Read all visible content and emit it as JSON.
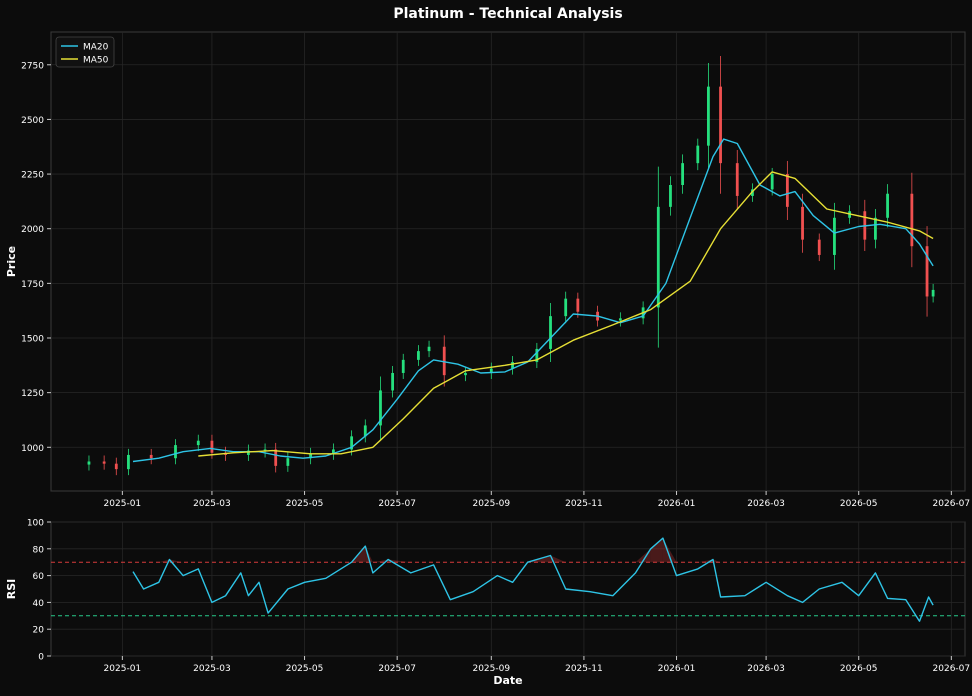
{
  "title": "Platinum - Technical Analysis",
  "colors": {
    "background": "#0c0c0c",
    "axes_bg": "#0c0c0c",
    "spine": "#3a3a3a",
    "grid": "#262626",
    "text": "#ffffff",
    "up": "#25e07e",
    "down": "#f05050",
    "ma20": "#2ec4e6",
    "ma50": "#e6df35",
    "rsi": "#2ec4e6",
    "overbought": "#d63b3b",
    "oversold": "#26c98a"
  },
  "chart_data": [
    {
      "type": "line",
      "panel": "price",
      "title": "Platinum - Technical Analysis",
      "xlabel": "",
      "ylabel": "Price",
      "x_ticks": [
        "2025-01",
        "2025-03",
        "2025-05",
        "2025-07",
        "2025-09",
        "2025-11",
        "2026-01",
        "2026-03",
        "2026-05",
        "2026-07"
      ],
      "xlim": [
        "2024-11-15",
        "2026-07-10"
      ],
      "ylim": [
        800,
        2900
      ],
      "y_ticks": [
        1000,
        1250,
        1500,
        1750,
        2000,
        2250,
        2500,
        2750
      ],
      "grid": true,
      "legend": {
        "position": "top-left",
        "entries": [
          "MA20",
          "MA50"
        ]
      },
      "candles": {
        "style": "candlestick",
        "points": [
          [
            "2024-12-10",
            935
          ],
          [
            "2024-12-20",
            925
          ],
          [
            "2024-12-28",
            900
          ],
          [
            "2025-01-05",
            965
          ],
          [
            "2025-01-20",
            950
          ],
          [
            "2025-02-05",
            1010
          ],
          [
            "2025-02-20",
            1030
          ],
          [
            "2025-03-01",
            975
          ],
          [
            "2025-03-10",
            965
          ],
          [
            "2025-03-25",
            985
          ],
          [
            "2025-04-05",
            990
          ],
          [
            "2025-04-12",
            915
          ],
          [
            "2025-04-20",
            950
          ],
          [
            "2025-05-05",
            970
          ],
          [
            "2025-05-20",
            990
          ],
          [
            "2025-06-01",
            1050
          ],
          [
            "2025-06-10",
            1100
          ],
          [
            "2025-06-20",
            1260
          ],
          [
            "2025-06-28",
            1340
          ],
          [
            "2025-07-05",
            1400
          ],
          [
            "2025-07-15",
            1440
          ],
          [
            "2025-07-22",
            1460
          ],
          [
            "2025-08-01",
            1330
          ],
          [
            "2025-08-15",
            1340
          ],
          [
            "2025-09-01",
            1360
          ],
          [
            "2025-09-15",
            1390
          ],
          [
            "2025-10-01",
            1450
          ],
          [
            "2025-10-10",
            1600
          ],
          [
            "2025-10-20",
            1680
          ],
          [
            "2025-10-28",
            1620
          ],
          [
            "2025-11-10",
            1580
          ],
          [
            "2025-11-25",
            1590
          ],
          [
            "2025-12-10",
            1640
          ],
          [
            "2025-12-20",
            2100
          ],
          [
            "2025-12-28",
            2200
          ],
          [
            "2026-01-05",
            2300
          ],
          [
            "2026-01-15",
            2380
          ],
          [
            "2026-01-22",
            2650
          ],
          [
            "2026-01-30",
            2300
          ],
          [
            "2026-02-10",
            2150
          ],
          [
            "2026-02-20",
            2180
          ],
          [
            "2026-03-05",
            2250
          ],
          [
            "2026-03-15",
            2100
          ],
          [
            "2026-03-25",
            1950
          ],
          [
            "2026-04-05",
            1880
          ],
          [
            "2026-04-15",
            2050
          ],
          [
            "2026-04-25",
            2080
          ],
          [
            "2026-05-05",
            1950
          ],
          [
            "2026-05-12",
            2050
          ],
          [
            "2026-05-20",
            2160
          ],
          [
            "2026-06-05",
            1920
          ],
          [
            "2026-06-15",
            1690
          ],
          [
            "2026-06-19",
            1720
          ]
        ]
      },
      "series": [
        {
          "name": "MA20",
          "points": [
            [
              "2025-01-08",
              935
            ],
            [
              "2025-01-25",
              950
            ],
            [
              "2025-02-10",
              980
            ],
            [
              "2025-02-28",
              995
            ],
            [
              "2025-03-15",
              980
            ],
            [
              "2025-04-01",
              980
            ],
            [
              "2025-04-15",
              960
            ],
            [
              "2025-04-30",
              950
            ],
            [
              "2025-05-15",
              960
            ],
            [
              "2025-06-01",
              1000
            ],
            [
              "2025-06-15",
              1080
            ],
            [
              "2025-07-01",
              1220
            ],
            [
              "2025-07-15",
              1350
            ],
            [
              "2025-07-25",
              1400
            ],
            [
              "2025-08-10",
              1380
            ],
            [
              "2025-08-25",
              1340
            ],
            [
              "2025-09-10",
              1345
            ],
            [
              "2025-09-25",
              1390
            ],
            [
              "2025-10-10",
              1500
            ],
            [
              "2025-10-25",
              1610
            ],
            [
              "2025-11-10",
              1600
            ],
            [
              "2025-11-25",
              1570
            ],
            [
              "2025-12-10",
              1600
            ],
            [
              "2025-12-25",
              1750
            ],
            [
              "2026-01-10",
              2050
            ],
            [
              "2026-01-25",
              2330
            ],
            [
              "2026-02-01",
              2410
            ],
            [
              "2026-02-10",
              2390
            ],
            [
              "2026-02-25",
              2200
            ],
            [
              "2026-03-10",
              2150
            ],
            [
              "2026-03-20",
              2170
            ],
            [
              "2026-04-01",
              2060
            ],
            [
              "2026-04-15",
              1980
            ],
            [
              "2026-05-01",
              2010
            ],
            [
              "2026-05-15",
              2020
            ],
            [
              "2026-06-01",
              2000
            ],
            [
              "2026-06-10",
              1930
            ],
            [
              "2026-06-19",
              1830
            ]
          ]
        },
        {
          "name": "MA50",
          "points": [
            [
              "2025-02-20",
              960
            ],
            [
              "2025-03-15",
              975
            ],
            [
              "2025-04-10",
              985
            ],
            [
              "2025-05-05",
              970
            ],
            [
              "2025-05-25",
              970
            ],
            [
              "2025-06-15",
              1000
            ],
            [
              "2025-07-05",
              1130
            ],
            [
              "2025-07-25",
              1270
            ],
            [
              "2025-08-15",
              1350
            ],
            [
              "2025-09-10",
              1375
            ],
            [
              "2025-10-01",
              1400
            ],
            [
              "2025-10-25",
              1490
            ],
            [
              "2025-11-20",
              1560
            ],
            [
              "2025-12-15",
              1630
            ],
            [
              "2026-01-10",
              1760
            ],
            [
              "2026-01-30",
              2000
            ],
            [
              "2026-02-20",
              2170
            ],
            [
              "2026-03-05",
              2260
            ],
            [
              "2026-03-20",
              2230
            ],
            [
              "2026-04-10",
              2090
            ],
            [
              "2026-04-30",
              2060
            ],
            [
              "2026-05-20",
              2030
            ],
            [
              "2026-06-10",
              1990
            ],
            [
              "2026-06-19",
              1955
            ]
          ]
        }
      ]
    },
    {
      "type": "line",
      "panel": "rsi",
      "xlabel": "Date",
      "ylabel": "RSI",
      "x_ticks": [
        "2025-01",
        "2025-03",
        "2025-05",
        "2025-07",
        "2025-09",
        "2025-11",
        "2026-01",
        "2026-03",
        "2026-05",
        "2026-07"
      ],
      "xlim": [
        "2024-11-15",
        "2026-07-10"
      ],
      "ylim": [
        0,
        100
      ],
      "y_ticks": [
        0,
        20,
        40,
        60,
        80,
        100
      ],
      "reference_lines": [
        70,
        30
      ],
      "grid": true,
      "series": [
        {
          "name": "RSI",
          "points": [
            [
              "2025-01-08",
              63
            ],
            [
              "2025-01-15",
              50
            ],
            [
              "2025-01-25",
              55
            ],
            [
              "2025-02-01",
              72
            ],
            [
              "2025-02-10",
              60
            ],
            [
              "2025-02-20",
              65
            ],
            [
              "2025-03-01",
              40
            ],
            [
              "2025-03-10",
              45
            ],
            [
              "2025-03-20",
              62
            ],
            [
              "2025-03-25",
              45
            ],
            [
              "2025-04-01",
              55
            ],
            [
              "2025-04-07",
              32
            ],
            [
              "2025-04-20",
              50
            ],
            [
              "2025-05-01",
              55
            ],
            [
              "2025-05-15",
              58
            ],
            [
              "2025-06-01",
              70
            ],
            [
              "2025-06-10",
              82
            ],
            [
              "2025-06-15",
              62
            ],
            [
              "2025-06-25",
              72
            ],
            [
              "2025-07-10",
              62
            ],
            [
              "2025-07-25",
              68
            ],
            [
              "2025-08-05",
              42
            ],
            [
              "2025-08-20",
              48
            ],
            [
              "2025-09-05",
              60
            ],
            [
              "2025-09-15",
              55
            ],
            [
              "2025-09-25",
              70
            ],
            [
              "2025-10-10",
              75
            ],
            [
              "2025-10-20",
              50
            ],
            [
              "2025-11-05",
              48
            ],
            [
              "2025-11-20",
              45
            ],
            [
              "2025-12-05",
              62
            ],
            [
              "2025-12-15",
              80
            ],
            [
              "2025-12-23",
              88
            ],
            [
              "2026-01-01",
              60
            ],
            [
              "2026-01-15",
              65
            ],
            [
              "2026-01-25",
              72
            ],
            [
              "2026-01-30",
              44
            ],
            [
              "2026-02-15",
              45
            ],
            [
              "2026-03-01",
              55
            ],
            [
              "2026-03-15",
              45
            ],
            [
              "2026-03-25",
              40
            ],
            [
              "2026-04-05",
              50
            ],
            [
              "2026-04-20",
              55
            ],
            [
              "2026-05-01",
              45
            ],
            [
              "2026-05-12",
              62
            ],
            [
              "2026-05-20",
              43
            ],
            [
              "2026-06-01",
              42
            ],
            [
              "2026-06-10",
              26
            ],
            [
              "2026-06-16",
              44
            ],
            [
              "2026-06-19",
              38
            ]
          ]
        }
      ]
    }
  ]
}
